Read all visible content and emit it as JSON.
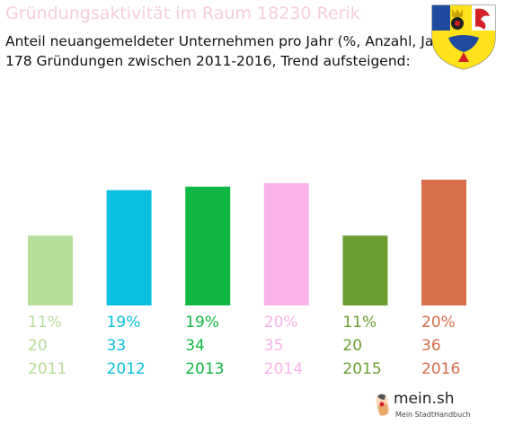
{
  "header": {
    "title": "Gründungsaktivität im Raum 18230 Rerik",
    "subtitle_line1": "Anteil neuangemeldeter Unternehmen pro Jahr (%, Anzahl, Jahr)",
    "subtitle_line2": "178 Gründungen zwischen 2011-2016, Trend aufsteigend:"
  },
  "crest": {
    "icon": "coat-of-arms-icon",
    "colors": [
      "#1f4aa0",
      "#ffe21a",
      "#ffffff",
      "#d31f26"
    ]
  },
  "chart_data": {
    "type": "bar",
    "categories": [
      "2011",
      "2012",
      "2013",
      "2014",
      "2015",
      "2016"
    ],
    "values": [
      20,
      33,
      34,
      35,
      20,
      36
    ],
    "percent_labels": [
      "11%",
      "19%",
      "19%",
      "20%",
      "11%",
      "20%"
    ],
    "count_labels": [
      "20",
      "33",
      "34",
      "35",
      "20",
      "36"
    ],
    "colors": [
      "#b6dd99",
      "#0bc0de",
      "#10b843",
      "#f9b3e8",
      "#6a9e33",
      "#d76d49"
    ],
    "ylim": [
      0,
      36
    ],
    "grid": false,
    "legend": "none"
  },
  "footer": {
    "brand": "mein.sh",
    "tagline": "Mein StadtHandbuch",
    "icon": "germany-map-icon"
  }
}
